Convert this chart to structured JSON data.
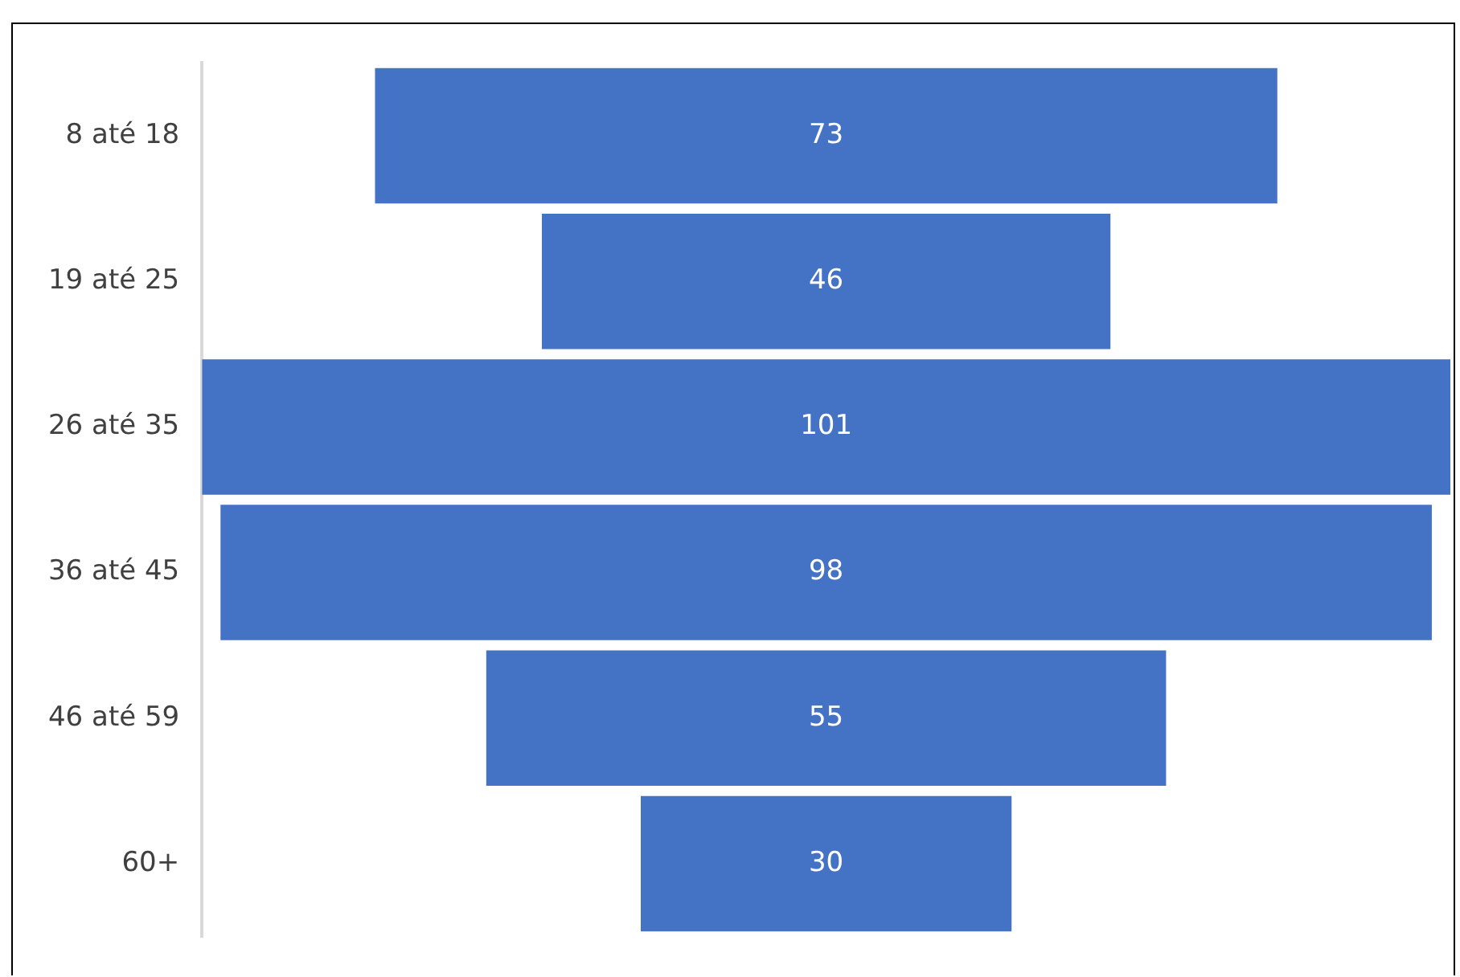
{
  "chart_data": {
    "type": "other",
    "categories": [
      "8 até 18",
      "19 até 25",
      "26 até 35",
      "36 até 45",
      "46 até 59",
      "60+"
    ],
    "values": [
      73,
      46,
      101,
      98,
      55,
      30
    ],
    "color": "#4472c4",
    "data_labels": true
  }
}
